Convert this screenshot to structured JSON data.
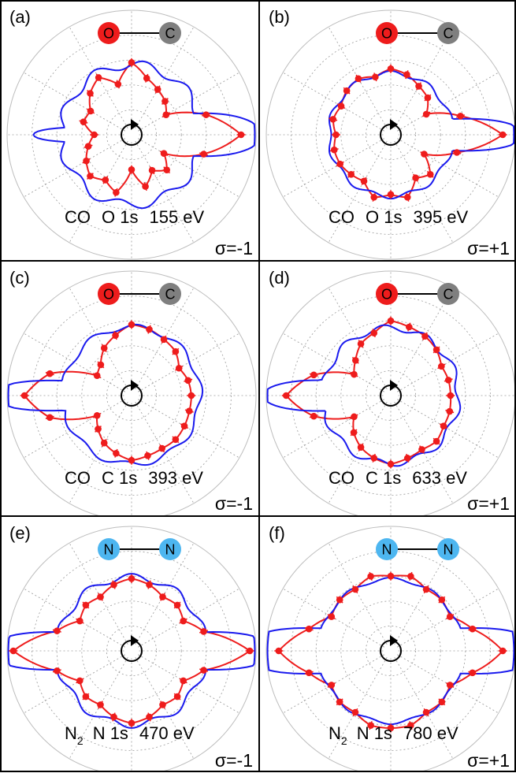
{
  "figure": {
    "legend": [
      {
        "name": "measurement",
        "color": "#ee1c1c"
      },
      {
        "name": "calculation",
        "color": "#1a1aee"
      }
    ],
    "atom_colors": {
      "O": "#ee1c1c",
      "C": "#7f7f7f",
      "N": "#4db6f0"
    }
  },
  "panels": [
    {
      "label": "(a)",
      "molecule": "CO",
      "core": "O 1s",
      "energy": "155 eV",
      "sigma": "σ=-1",
      "atoms": [
        {
          "symbol": "O",
          "color": "#ee1c1c"
        },
        {
          "symbol": "C",
          "color": "#7f7f7f"
        }
      ],
      "caption_subscript": ""
    },
    {
      "label": "(b)",
      "molecule": "CO",
      "core": "O 1s",
      "energy": "395 eV",
      "sigma": "σ=+1",
      "atoms": [
        {
          "symbol": "O",
          "color": "#ee1c1c"
        },
        {
          "symbol": "C",
          "color": "#7f7f7f"
        }
      ],
      "caption_subscript": ""
    },
    {
      "label": "(c)",
      "molecule": "CO",
      "core": "C 1s",
      "energy": "393 eV",
      "sigma": "σ=-1",
      "atoms": [
        {
          "symbol": "O",
          "color": "#ee1c1c"
        },
        {
          "symbol": "C",
          "color": "#7f7f7f"
        }
      ],
      "caption_subscript": ""
    },
    {
      "label": "(d)",
      "molecule": "CO",
      "core": "C 1s",
      "energy": "633 eV",
      "sigma": "σ=+1",
      "atoms": [
        {
          "symbol": "O",
          "color": "#ee1c1c"
        },
        {
          "symbol": "C",
          "color": "#7f7f7f"
        }
      ],
      "caption_subscript": ""
    },
    {
      "label": "(e)",
      "molecule": "N",
      "core": "N 1s",
      "energy": "470 eV",
      "sigma": "σ=-1",
      "atoms": [
        {
          "symbol": "N",
          "color": "#4db6f0"
        },
        {
          "symbol": "N",
          "color": "#4db6f0"
        }
      ],
      "caption_subscript": "2"
    },
    {
      "label": "(f)",
      "molecule": "N",
      "core": "N 1s",
      "energy": "780 eV",
      "sigma": "σ=+1",
      "atoms": [
        {
          "symbol": "N",
          "color": "#4db6f0"
        },
        {
          "symbol": "N",
          "color": "#4db6f0"
        }
      ],
      "caption_subscript": "2"
    }
  ],
  "chart_data": [
    {
      "type": "scatter",
      "coordinate_system": "polar",
      "panel": "(a)",
      "angle_unit": "deg",
      "radial_max": 1,
      "series": [
        {
          "role": "measured",
          "r_deg": [
            [
              0,
              0.88
            ],
            [
              15,
              0.62
            ],
            [
              30,
              0.32
            ],
            [
              45,
              0.38
            ],
            [
              60,
              0.42
            ],
            [
              75,
              0.47
            ],
            [
              90,
              0.58
            ],
            [
              105,
              0.42
            ],
            [
              120,
              0.53
            ],
            [
              135,
              0.47
            ],
            [
              150,
              0.38
            ],
            [
              165,
              0.4
            ],
            [
              180,
              0.3
            ],
            [
              195,
              0.36
            ],
            [
              210,
              0.42
            ],
            [
              225,
              0.47
            ],
            [
              240,
              0.42
            ],
            [
              255,
              0.48
            ],
            [
              270,
              0.28
            ],
            [
              285,
              0.43
            ],
            [
              300,
              0.33
            ],
            [
              315,
              0.4
            ],
            [
              330,
              0.3
            ],
            [
              345,
              0.6
            ]
          ]
        },
        {
          "role": "theory",
          "model": {
            "rmin": 0.28,
            "rmax": 0.58,
            "lobes": 9,
            "lobeAmp": 0.3,
            "lobeCenter": 0,
            "lobeWidth": 15,
            "horizontal": [
              {
                "dir": 0,
                "amp": 0.88,
                "width": 14
              },
              {
                "dir": 180,
                "amp": 0.62,
                "width": 6
              }
            ]
          }
        }
      ]
    },
    {
      "type": "scatter",
      "coordinate_system": "polar",
      "panel": "(b)",
      "angle_unit": "deg",
      "radial_max": 1,
      "series": [
        {
          "role": "measured",
          "r_deg": [
            [
              0,
              0.9
            ],
            [
              15,
              0.58
            ],
            [
              30,
              0.33
            ],
            [
              45,
              0.42
            ],
            [
              60,
              0.45
            ],
            [
              75,
              0.5
            ],
            [
              90,
              0.53
            ],
            [
              105,
              0.48
            ],
            [
              120,
              0.52
            ],
            [
              135,
              0.5
            ],
            [
              150,
              0.46
            ],
            [
              165,
              0.48
            ],
            [
              180,
              0.44
            ],
            [
              195,
              0.47
            ],
            [
              210,
              0.47
            ],
            [
              225,
              0.45
            ],
            [
              240,
              0.43
            ],
            [
              255,
              0.52
            ],
            [
              270,
              0.48
            ],
            [
              285,
              0.52
            ],
            [
              300,
              0.4
            ],
            [
              315,
              0.45
            ],
            [
              330,
              0.31
            ],
            [
              345,
              0.55
            ]
          ]
        },
        {
          "role": "theory",
          "model": {
            "rmin": 0.32,
            "rmax": 0.52,
            "lobes": 10,
            "lobeAmp": 0.18,
            "lobeCenter": 90,
            "lobeWidth": 14,
            "horizontal": [
              {
                "dir": 0,
                "amp": 0.88,
                "width": 10
              }
            ]
          }
        }
      ]
    },
    {
      "type": "scatter",
      "coordinate_system": "polar",
      "panel": "(c)",
      "angle_unit": "deg",
      "radial_max": 1,
      "series": [
        {
          "role": "measured",
          "r_deg": [
            [
              0,
              0.48
            ],
            [
              15,
              0.47
            ],
            [
              30,
              0.44
            ],
            [
              45,
              0.5
            ],
            [
              60,
              0.52
            ],
            [
              75,
              0.55
            ],
            [
              90,
              0.57
            ],
            [
              105,
              0.5
            ],
            [
              120,
              0.44
            ],
            [
              135,
              0.35
            ],
            [
              150,
              0.32
            ],
            [
              165,
              0.68
            ],
            [
              180,
              0.86
            ],
            [
              195,
              0.68
            ],
            [
              210,
              0.32
            ],
            [
              225,
              0.38
            ],
            [
              240,
              0.44
            ],
            [
              255,
              0.48
            ],
            [
              270,
              0.52
            ],
            [
              285,
              0.5
            ],
            [
              300,
              0.49
            ],
            [
              315,
              0.5
            ],
            [
              330,
              0.49
            ],
            [
              345,
              0.48
            ]
          ]
        },
        {
          "role": "theory",
          "model": {
            "rmin": 0.3,
            "rmax": 0.58,
            "lobes": 9,
            "lobeAmp": 0.25,
            "lobeCenter": 45,
            "lobeWidth": 16,
            "horizontal": [
              {
                "dir": 180,
                "amp": 0.96,
                "width": 9
              }
            ]
          }
        }
      ]
    },
    {
      "type": "scatter",
      "coordinate_system": "polar",
      "panel": "(d)",
      "angle_unit": "deg",
      "radial_max": 1,
      "series": [
        {
          "role": "measured",
          "r_deg": [
            [
              0,
              0.48
            ],
            [
              15,
              0.48
            ],
            [
              30,
              0.47
            ],
            [
              45,
              0.52
            ],
            [
              60,
              0.55
            ],
            [
              75,
              0.57
            ],
            [
              90,
              0.6
            ],
            [
              105,
              0.52
            ],
            [
              120,
              0.48
            ],
            [
              135,
              0.4
            ],
            [
              150,
              0.34
            ],
            [
              165,
              0.64
            ],
            [
              180,
              0.84
            ],
            [
              195,
              0.64
            ],
            [
              210,
              0.34
            ],
            [
              225,
              0.42
            ],
            [
              240,
              0.48
            ],
            [
              255,
              0.52
            ],
            [
              270,
              0.55
            ],
            [
              285,
              0.52
            ],
            [
              300,
              0.5
            ],
            [
              315,
              0.52
            ],
            [
              330,
              0.49
            ],
            [
              345,
              0.49
            ]
          ]
        },
        {
          "role": "theory",
          "model": {
            "rmin": 0.3,
            "rmax": 0.58,
            "lobes": 10,
            "lobeAmp": 0.25,
            "lobeCenter": 60,
            "lobeWidth": 14,
            "horizontal": [
              {
                "dir": 180,
                "amp": 0.85,
                "width": 10
              }
            ]
          }
        }
      ]
    },
    {
      "type": "scatter",
      "coordinate_system": "polar",
      "panel": "(e)",
      "angle_unit": "deg",
      "radial_max": 1,
      "series": [
        {
          "role": "measured",
          "r_deg": [
            [
              0,
              0.95
            ],
            [
              15,
              0.6
            ],
            [
              30,
              0.48
            ],
            [
              45,
              0.52
            ],
            [
              60,
              0.5
            ],
            [
              75,
              0.55
            ],
            [
              90,
              0.58
            ],
            [
              105,
              0.55
            ],
            [
              120,
              0.5
            ],
            [
              135,
              0.52
            ],
            [
              150,
              0.48
            ],
            [
              165,
              0.62
            ],
            [
              180,
              0.95
            ],
            [
              195,
              0.62
            ],
            [
              210,
              0.48
            ],
            [
              225,
              0.52
            ],
            [
              240,
              0.5
            ],
            [
              255,
              0.55
            ],
            [
              270,
              0.58
            ],
            [
              285,
              0.55
            ],
            [
              300,
              0.5
            ],
            [
              315,
              0.52
            ],
            [
              330,
              0.48
            ],
            [
              345,
              0.6
            ]
          ]
        },
        {
          "role": "theory",
          "model": {
            "rmin": 0.33,
            "rmax": 0.6,
            "lobes": 10,
            "lobeAmp": 0.27,
            "lobeCenter": 90,
            "lobeWidth": 14,
            "horizontal": [
              {
                "dir": 0,
                "amp": 0.96,
                "width": 11
              },
              {
                "dir": 180,
                "amp": 0.96,
                "width": 11
              }
            ]
          }
        }
      ]
    },
    {
      "type": "scatter",
      "coordinate_system": "polar",
      "panel": "(f)",
      "angle_unit": "deg",
      "radial_max": 1,
      "series": [
        {
          "role": "measured",
          "r_deg": [
            [
              0,
              0.9
            ],
            [
              15,
              0.68
            ],
            [
              30,
              0.55
            ],
            [
              45,
              0.58
            ],
            [
              60,
              0.57
            ],
            [
              75,
              0.62
            ],
            [
              90,
              0.6
            ],
            [
              105,
              0.62
            ],
            [
              120,
              0.57
            ],
            [
              135,
              0.58
            ],
            [
              150,
              0.55
            ],
            [
              165,
              0.68
            ],
            [
              180,
              0.9
            ],
            [
              195,
              0.68
            ],
            [
              210,
              0.55
            ],
            [
              225,
              0.58
            ],
            [
              240,
              0.57
            ],
            [
              255,
              0.62
            ],
            [
              270,
              0.62
            ],
            [
              285,
              0.62
            ],
            [
              300,
              0.57
            ],
            [
              315,
              0.58
            ],
            [
              330,
              0.55
            ],
            [
              345,
              0.68
            ]
          ]
        },
        {
          "role": "theory",
          "model": {
            "rmin": 0.45,
            "rmax": 0.6,
            "lobes": 10,
            "lobeAmp": 0.13,
            "lobeCenter": 90,
            "lobeWidth": 14,
            "horizontal": [
              {
                "dir": 0,
                "amp": 0.96,
                "width": 12
              },
              {
                "dir": 180,
                "amp": 0.96,
                "width": 12
              }
            ]
          }
        }
      ]
    }
  ]
}
